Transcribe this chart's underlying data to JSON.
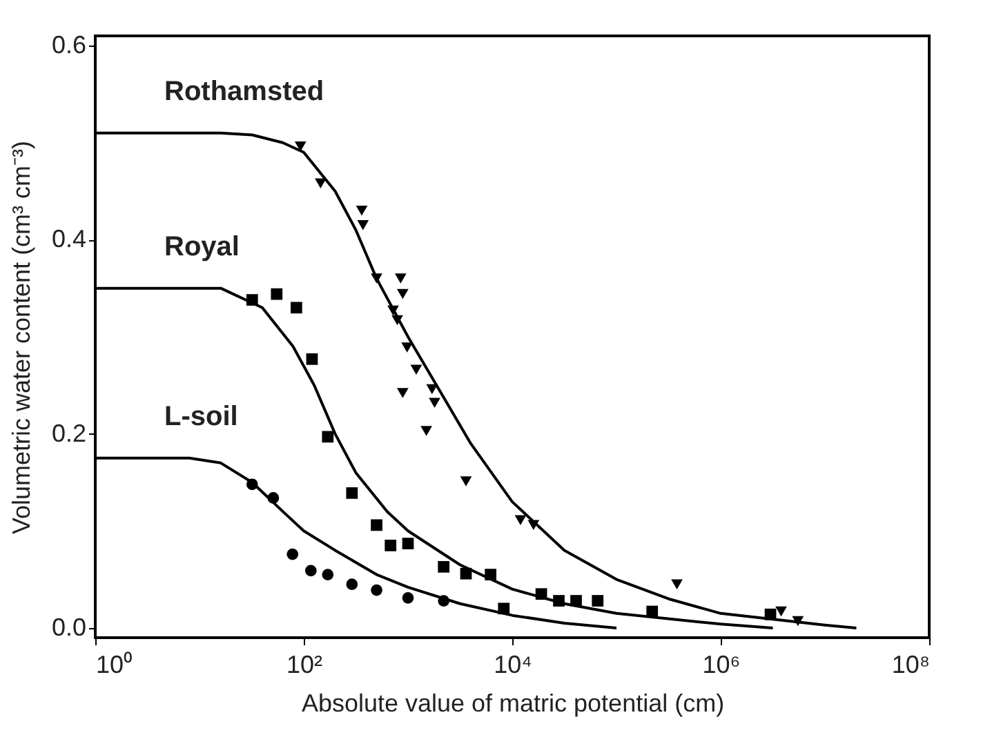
{
  "chart_data": {
    "type": "scatter",
    "xlabel": "Absolute value of matric potential (cm)",
    "ylabel": "Volumetric water content (cm³ cm⁻³)",
    "log": "x",
    "xlim": [
      1,
      100000000
    ],
    "xticks": [
      {
        "value": 1,
        "label": "10⁰"
      },
      {
        "value": 100,
        "label": "10²"
      },
      {
        "value": 10000,
        "label": "10⁴"
      },
      {
        "value": 1000000,
        "label": "10⁶"
      },
      {
        "value": 100000000,
        "label": "10⁸"
      }
    ],
    "ylim": [
      -0.01,
      0.61
    ],
    "yticks": [
      {
        "value": 0,
        "label": "0.0"
      },
      {
        "value": 0.2,
        "label": "0.2"
      },
      {
        "value": 0.4,
        "label": "0.4"
      },
      {
        "value": 0.6,
        "label": "0.6"
      }
    ],
    "grid": false,
    "legend": false,
    "series": [
      {
        "type": "line",
        "name": "Rothamsted",
        "marker": "none",
        "color": "#000000",
        "x": [
          1,
          16,
          32,
          63,
          100,
          200,
          316,
          500,
          1000,
          2000,
          4000,
          10000,
          31623,
          100000,
          316228,
          1000000,
          10000000,
          20000000
        ],
        "values": [
          0.51,
          0.51,
          0.508,
          0.5,
          0.49,
          0.45,
          0.41,
          0.36,
          0.3,
          0.245,
          0.19,
          0.13,
          0.08,
          0.05,
          0.03,
          0.015,
          0.003,
          0.0
        ]
      },
      {
        "type": "line",
        "name": "Royal",
        "marker": "none",
        "color": "#000000",
        "x": [
          1,
          16,
          40,
          79,
          126,
          200,
          316,
          631,
          1000,
          3162,
          10000,
          31623,
          100000,
          1000000,
          3162278
        ],
        "values": [
          0.35,
          0.35,
          0.33,
          0.29,
          0.25,
          0.2,
          0.16,
          0.12,
          0.1,
          0.065,
          0.04,
          0.025,
          0.015,
          0.004,
          0.0
        ]
      },
      {
        "type": "line",
        "name": "L-soil",
        "marker": "none",
        "color": "#000000",
        "x": [
          1,
          8,
          16,
          32,
          63,
          100,
          200,
          500,
          1000,
          3162,
          10000,
          31623,
          100000
        ],
        "values": [
          0.175,
          0.175,
          0.17,
          0.15,
          0.12,
          0.1,
          0.08,
          0.055,
          0.042,
          0.025,
          0.013,
          0.005,
          0.0
        ]
      },
      {
        "type": "scatter",
        "marker": "triangle",
        "color": "#000000",
        "x": [
          93,
          145,
          360,
          370,
          500,
          850,
          890,
          720,
          790,
          980,
          1200,
          1700,
          1800,
          890,
          1500,
          3600,
          12000,
          16000,
          380000,
          3800000,
          5500000
        ],
        "values": [
          0.496,
          0.458,
          0.43,
          0.415,
          0.36,
          0.36,
          0.344,
          0.327,
          0.317,
          0.289,
          0.266,
          0.246,
          0.232,
          0.242,
          0.203,
          0.151,
          0.111,
          0.106,
          0.045,
          0.017,
          0.007
        ]
      },
      {
        "type": "scatter",
        "marker": "square",
        "color": "#000000",
        "x": [
          32,
          55,
          85,
          120,
          170,
          290,
          500,
          680,
          1000,
          2200,
          3600,
          6200,
          8300,
          19000,
          28000,
          41000,
          66000,
          220000,
          3000000
        ],
        "values": [
          0.338,
          0.344,
          0.33,
          0.277,
          0.197,
          0.139,
          0.106,
          0.085,
          0.087,
          0.063,
          0.056,
          0.055,
          0.02,
          0.035,
          0.028,
          0.028,
          0.028,
          0.017,
          0.014
        ]
      },
      {
        "type": "scatter",
        "marker": "circle",
        "color": "#000000",
        "x": [
          32,
          51,
          78,
          117,
          170,
          290,
          500,
          1000,
          2200
        ],
        "values": [
          0.148,
          0.134,
          0.076,
          0.059,
          0.055,
          0.045,
          0.039,
          0.031,
          0.028
        ]
      }
    ]
  }
}
